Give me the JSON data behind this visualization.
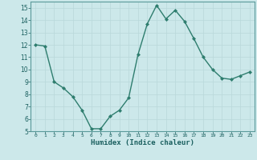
{
  "x": [
    0,
    1,
    2,
    3,
    4,
    5,
    6,
    7,
    8,
    9,
    10,
    11,
    12,
    13,
    14,
    15,
    16,
    17,
    18,
    19,
    20,
    21,
    22,
    23
  ],
  "y": [
    12,
    11.9,
    9,
    8.5,
    7.8,
    6.7,
    5.2,
    5.2,
    6.2,
    6.7,
    7.7,
    11.2,
    13.7,
    15.2,
    14.1,
    14.8,
    13.9,
    12.5,
    11.0,
    10.0,
    9.3,
    9.2,
    9.5,
    9.8
  ],
  "xlabel": "Humidex (Indice chaleur)",
  "ylabel": "",
  "ylim": [
    5,
    15.5
  ],
  "xlim": [
    -0.5,
    23.5
  ],
  "yticks": [
    5,
    6,
    7,
    8,
    9,
    10,
    11,
    12,
    13,
    14,
    15
  ],
  "xticks": [
    0,
    1,
    2,
    3,
    4,
    5,
    6,
    7,
    8,
    9,
    10,
    11,
    12,
    13,
    14,
    15,
    16,
    17,
    18,
    19,
    20,
    21,
    22,
    23
  ],
  "line_color": "#2e7d6e",
  "bg_color": "#cce8ea",
  "grid_color_major": "#b8d8da",
  "grid_color_minor": "#d8ecee",
  "axis_label_color": "#1a5f5f",
  "tick_label_color": "#1a5f5f",
  "spine_color": "#5a9a9a"
}
